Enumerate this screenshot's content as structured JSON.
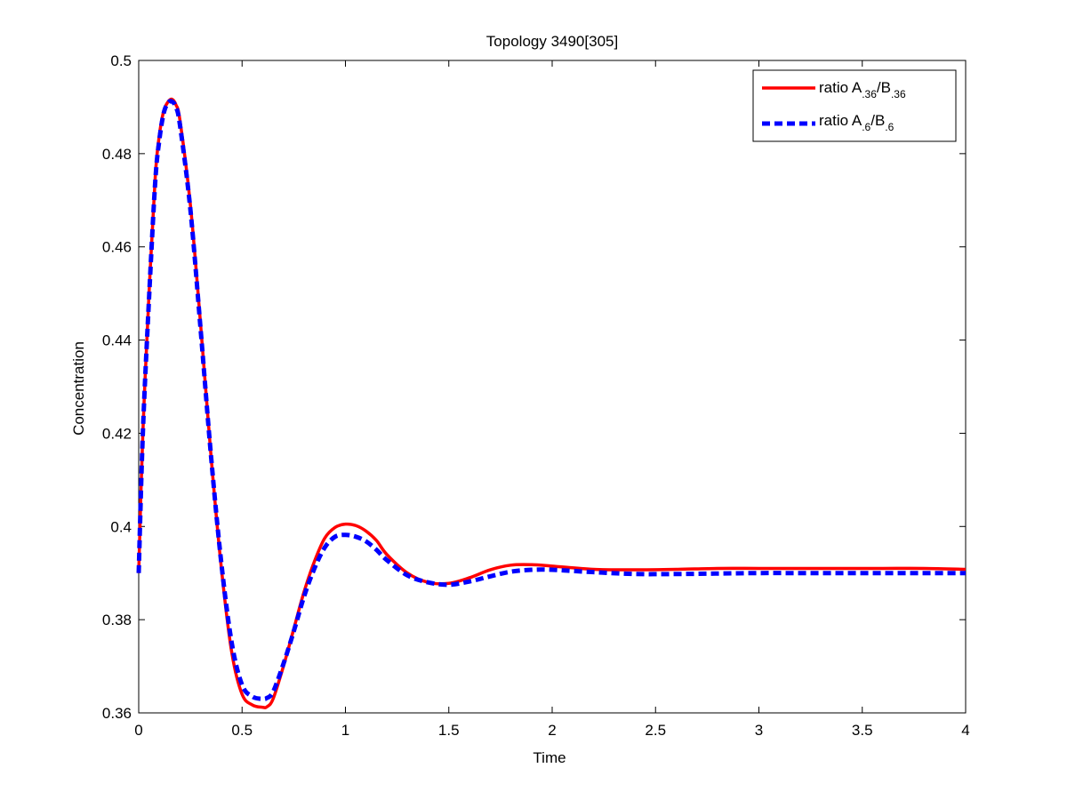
{
  "chart_data": {
    "type": "line",
    "title": "Topology 3490[305]",
    "xlabel": "Time",
    "ylabel": "Concentration",
    "xlim": [
      0,
      4
    ],
    "ylim": [
      0.36,
      0.5
    ],
    "xticks": [
      0,
      0.5,
      1,
      1.5,
      2,
      2.5,
      3,
      3.5,
      4
    ],
    "xtick_labels": [
      "0",
      "0.5",
      "1",
      "1.5",
      "2",
      "2.5",
      "3",
      "3.5",
      "4"
    ],
    "yticks": [
      0.36,
      0.38,
      0.4,
      0.42,
      0.44,
      0.46,
      0.48,
      0.5
    ],
    "ytick_labels": [
      "0.36",
      "0.38",
      "0.4",
      "0.42",
      "0.44",
      "0.46",
      "0.48",
      "0.5"
    ],
    "grid": false,
    "legend_position": "top-right",
    "series": [
      {
        "legend_prefix": "ratio A",
        "legend_sub1": ".36",
        "legend_mid": "/B",
        "legend_sub2": ".36",
        "color": "#ff0000",
        "style": "solid",
        "x": [
          0,
          0.02,
          0.05,
          0.08,
          0.1,
          0.12,
          0.14,
          0.16,
          0.18,
          0.2,
          0.25,
          0.3,
          0.35,
          0.4,
          0.45,
          0.5,
          0.55,
          0.6,
          0.62,
          0.65,
          0.7,
          0.75,
          0.8,
          0.85,
          0.9,
          0.95,
          1.0,
          1.05,
          1.1,
          1.15,
          1.2,
          1.3,
          1.4,
          1.5,
          1.6,
          1.7,
          1.8,
          1.9,
          2.0,
          2.2,
          2.4,
          2.6,
          2.8,
          3.0,
          3.2,
          3.4,
          3.6,
          3.8,
          4.0
        ],
        "y": [
          0.39,
          0.42,
          0.45,
          0.475,
          0.484,
          0.489,
          0.491,
          0.4917,
          0.4905,
          0.487,
          0.469,
          0.443,
          0.415,
          0.391,
          0.373,
          0.364,
          0.3617,
          0.3612,
          0.3613,
          0.363,
          0.37,
          0.378,
          0.386,
          0.3925,
          0.3975,
          0.3998,
          0.4005,
          0.4002,
          0.399,
          0.397,
          0.394,
          0.39,
          0.388,
          0.3878,
          0.389,
          0.3907,
          0.3917,
          0.3918,
          0.3915,
          0.3908,
          0.3907,
          0.3908,
          0.391,
          0.391,
          0.391,
          0.391,
          0.391,
          0.391,
          0.3908
        ]
      },
      {
        "legend_prefix": "ratio A",
        "legend_sub1": ".6",
        "legend_mid": "/B",
        "legend_sub2": ".6",
        "color": "#0000ff",
        "style": "dashed",
        "x": [
          0,
          0.02,
          0.05,
          0.08,
          0.1,
          0.12,
          0.14,
          0.16,
          0.18,
          0.2,
          0.25,
          0.3,
          0.35,
          0.4,
          0.45,
          0.5,
          0.55,
          0.6,
          0.62,
          0.65,
          0.7,
          0.75,
          0.8,
          0.85,
          0.9,
          0.95,
          1.0,
          1.05,
          1.1,
          1.15,
          1.2,
          1.3,
          1.4,
          1.5,
          1.6,
          1.7,
          1.8,
          1.9,
          2.0,
          2.2,
          2.4,
          2.6,
          2.8,
          3.0,
          3.2,
          3.4,
          3.6,
          3.8,
          4.0
        ],
        "y": [
          0.39,
          0.42,
          0.449,
          0.474,
          0.483,
          0.4885,
          0.4908,
          0.4912,
          0.49,
          0.486,
          0.468,
          0.442,
          0.415,
          0.392,
          0.375,
          0.366,
          0.3635,
          0.363,
          0.3632,
          0.3645,
          0.3705,
          0.3775,
          0.385,
          0.391,
          0.3955,
          0.3978,
          0.3982,
          0.3978,
          0.3968,
          0.395,
          0.3928,
          0.3895,
          0.388,
          0.3875,
          0.3882,
          0.3893,
          0.3903,
          0.3907,
          0.3907,
          0.3902,
          0.3898,
          0.3898,
          0.3899,
          0.39,
          0.39,
          0.39,
          0.39,
          0.39,
          0.39
        ]
      }
    ]
  }
}
